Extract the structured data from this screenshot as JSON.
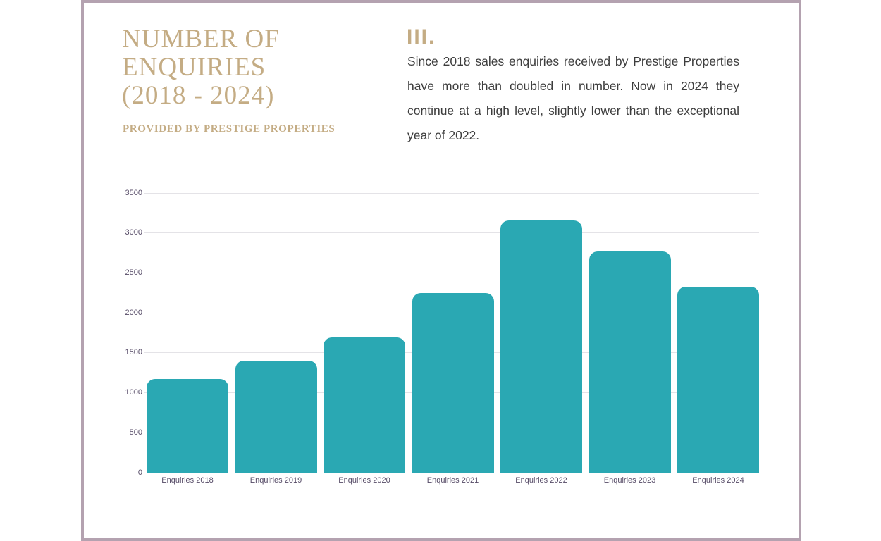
{
  "page": {
    "background_color": "#ffffff",
    "frame_color": "#b4a2b0"
  },
  "header": {
    "title": "NUMBER OF\nENQUIRIES\n(2018 - 2024)",
    "subtitle": "PROVIDED BY PRESTIGE PROPERTIES",
    "accent_color": "#c4ac84"
  },
  "section": {
    "number": "III.",
    "paragraph": "Since 2018 sales enquiries received by Prestige Properties have more than doubled in number. Now in 2024 they continue at a high level, slightly lower than the exceptional year of 2022.",
    "text_color": "#3d3d3d"
  },
  "chart_data": {
    "type": "bar",
    "categories": [
      "Enquiries 2018",
      "Enquiries 2019",
      "Enquiries 2020",
      "Enquiries 2021",
      "Enquiries 2022",
      "Enquiries 2023",
      "Enquiries 2024"
    ],
    "values": [
      1170,
      1400,
      1690,
      2250,
      3160,
      2770,
      2330
    ],
    "title": "",
    "xlabel": "",
    "ylabel": "",
    "ylim": [
      0,
      3500
    ],
    "yticks": [
      0,
      500,
      1000,
      1500,
      2000,
      2500,
      3000,
      3500
    ],
    "grid": true,
    "legend_position": "none",
    "bar_color": "#2aa8b3",
    "gridline_color": "#e4e3e7",
    "tick_label_color": "#554a66"
  }
}
